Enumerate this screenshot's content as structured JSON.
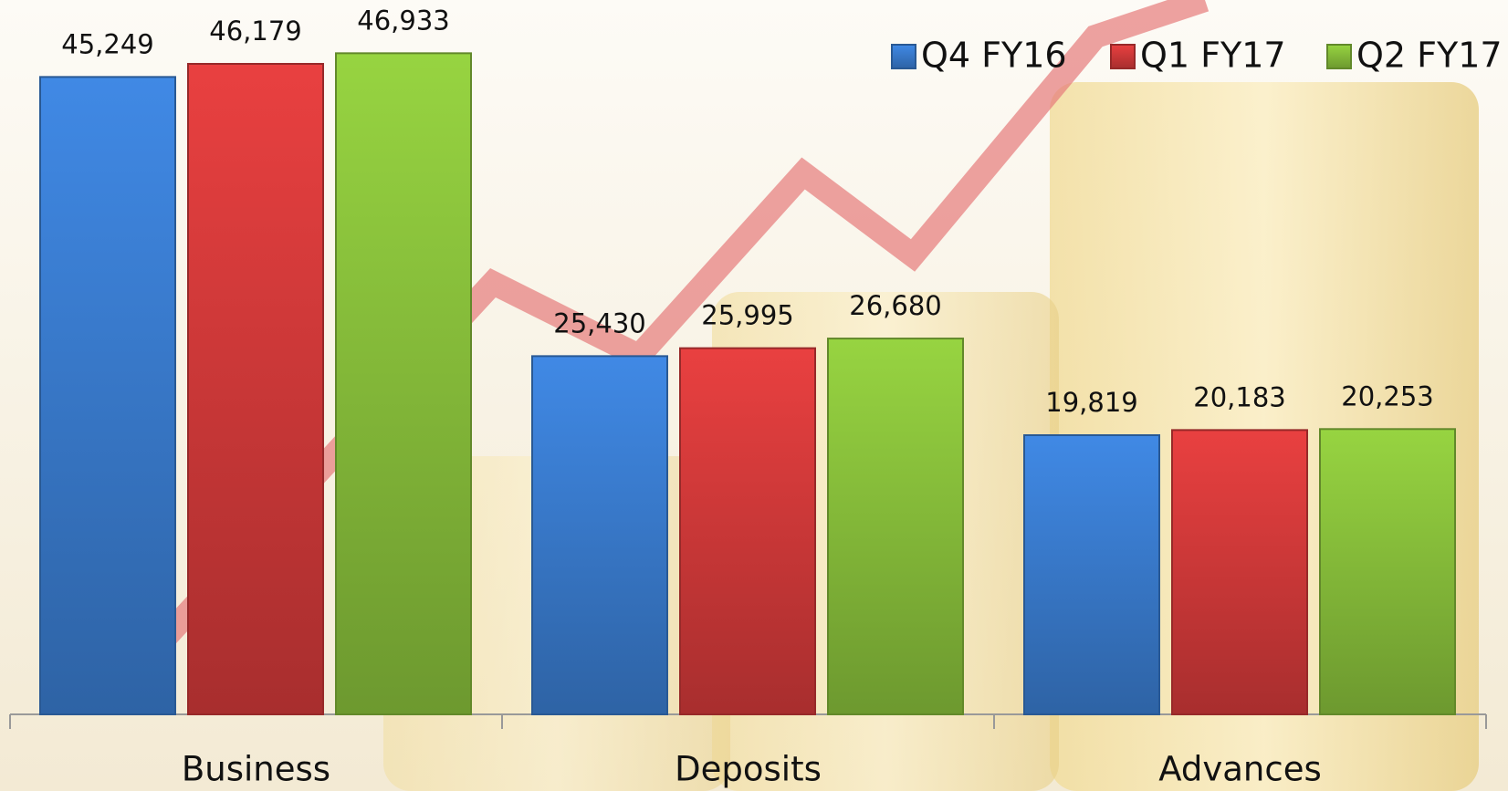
{
  "chart_data": {
    "type": "bar",
    "categories": [
      "Business",
      "Deposits",
      "Advances"
    ],
    "series": [
      {
        "name": "Q4 FY16",
        "color": "#3b7fd4",
        "values": [
          45249,
          25430,
          19819
        ],
        "value_labels": [
          "45,249",
          "25,430",
          "19,819"
        ]
      },
      {
        "name": "Q1 FY17",
        "color": "#d83b3b",
        "values": [
          46179,
          25995,
          20183
        ],
        "value_labels": [
          "46,179",
          "25,995",
          "20,183"
        ]
      },
      {
        "name": "Q2 FY17",
        "color": "#8cc43c",
        "values": [
          46933,
          26680,
          20253
        ],
        "value_labels": [
          "46,933",
          "26,680",
          "20,253"
        ]
      }
    ],
    "ylim": [
      0,
      50000
    ],
    "legend": "top-right"
  }
}
